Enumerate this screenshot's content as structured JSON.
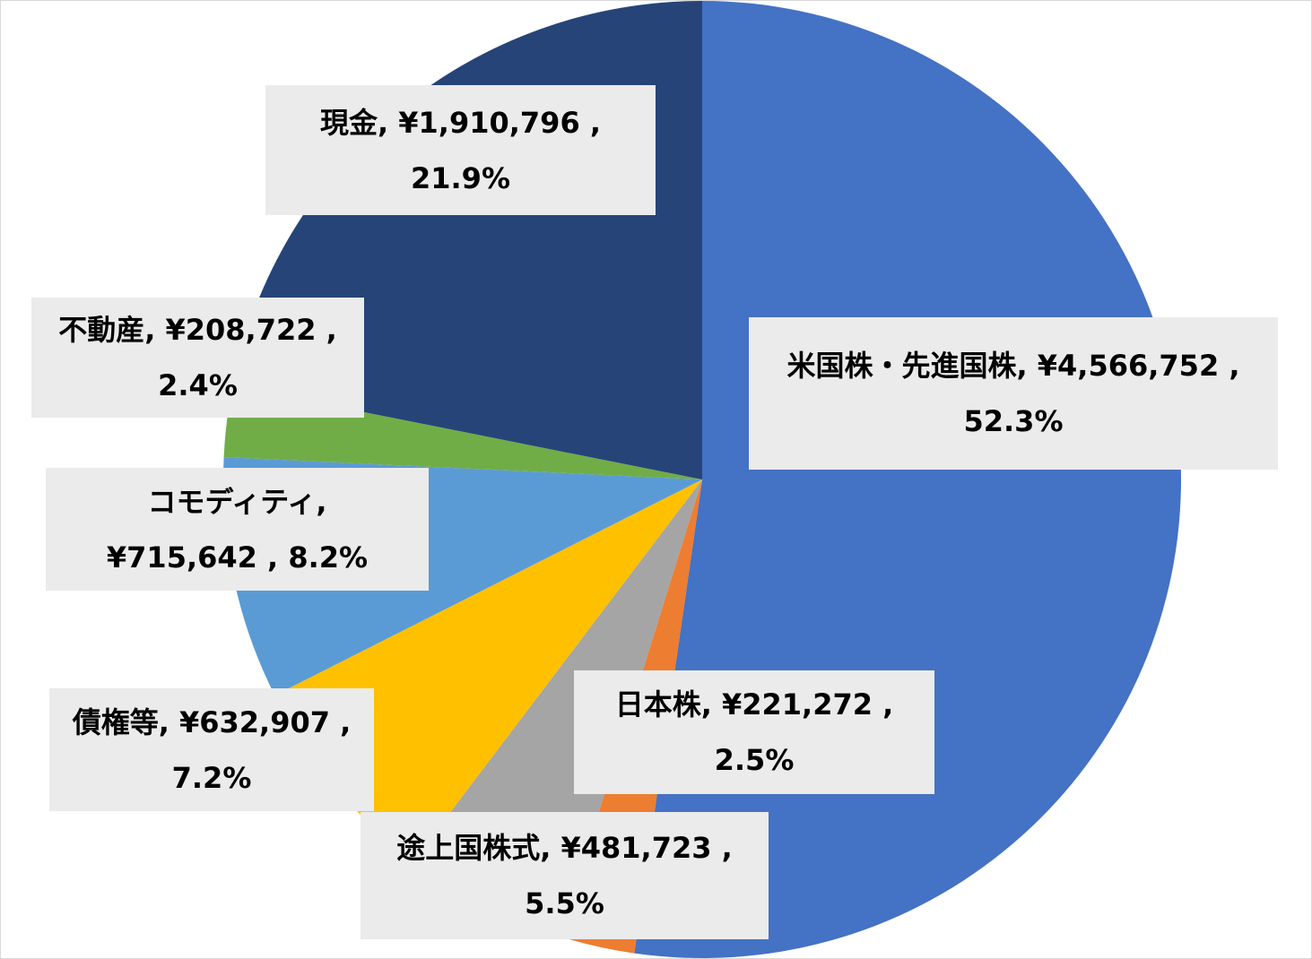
{
  "chart_data": {
    "type": "pie",
    "title": "",
    "start_angle_deg": 0,
    "direction": "clockwise",
    "slices": [
      {
        "name": "米国株・先進国株",
        "value": 4566752,
        "percent": "52.3%",
        "value_label": "¥4,566,752",
        "color": "#4472c4"
      },
      {
        "name": "日本株",
        "value": 221272,
        "percent": "2.5%",
        "value_label": "¥221,272",
        "color": "#ed7d31"
      },
      {
        "name": "途上国株式",
        "value": 481723,
        "percent": "5.5%",
        "value_label": "¥481,723",
        "color": "#a5a5a5"
      },
      {
        "name": "債権等",
        "value": 632907,
        "percent": "7.2%",
        "value_label": "¥632,907",
        "color": "#ffc000"
      },
      {
        "name": "コモディティ",
        "value": 715642,
        "percent": "8.2%",
        "value_label": "¥715,642",
        "color": "#5b9bd5"
      },
      {
        "name": "不動産",
        "value": 208722,
        "percent": "2.4%",
        "value_label": "¥208,722",
        "color": "#70ad47"
      },
      {
        "name": "現金",
        "value": 1910796,
        "percent": "21.9%",
        "value_label": "¥1,910,796",
        "color": "#264478"
      }
    ]
  },
  "labels": {
    "us": {
      "line1": "米国株・先進国株, ¥4,566,752 ,",
      "line2": "52.3%"
    },
    "jp": {
      "line1": "日本株, ¥221,272 ,",
      "line2": "2.5%"
    },
    "em": {
      "line1": "途上国株式, ¥481,723 ,",
      "line2": "5.5%"
    },
    "bond": {
      "line1": "債権等, ¥632,907 ,",
      "line2": "7.2%"
    },
    "commodity": {
      "line1": "コモディティ,",
      "line2": "¥715,642 , 8.2%"
    },
    "realestate": {
      "line1": "不動産, ¥208,722 ,",
      "line2": "2.4%"
    },
    "cash": {
      "line1": "現金, ¥1,910,796 ,",
      "line2": "21.9%"
    }
  }
}
